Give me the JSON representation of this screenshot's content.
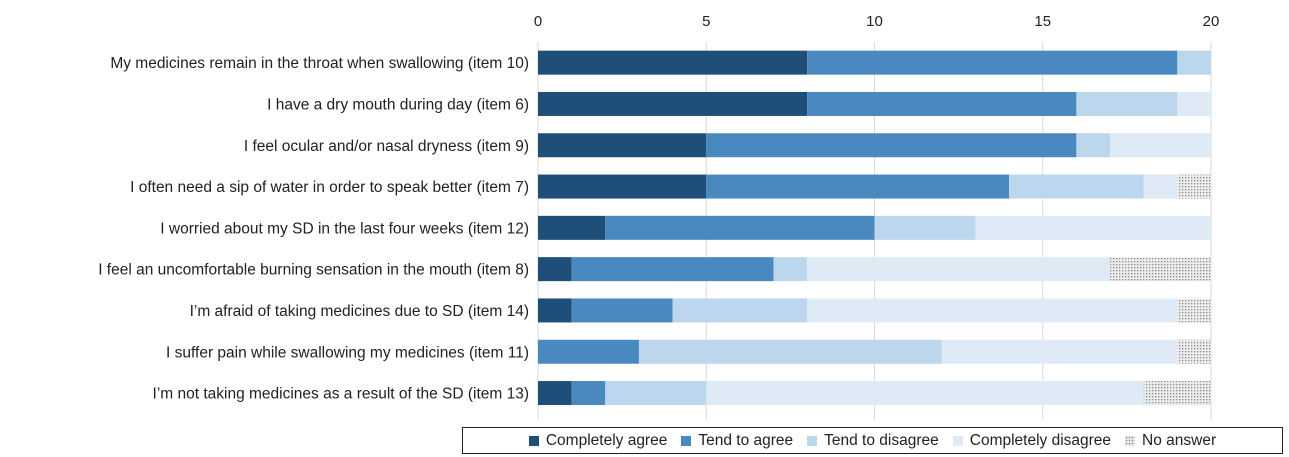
{
  "chart_data": {
    "type": "bar",
    "orientation": "horizontal",
    "stacked": true,
    "title": "",
    "xlabel": "",
    "ylabel": "",
    "xlim": [
      0,
      20
    ],
    "x_ticks": [
      0,
      5,
      10,
      15,
      20
    ],
    "x_axis_position": "top",
    "grid": true,
    "legend_position": "bottom-right",
    "categories": [
      "My medicines remain in the throat when swallowing (item 10)",
      "I have a dry mouth during day (item 6)",
      "I feel ocular and/or nasal dryness (item 9)",
      "I often need a sip of water in order to speak better (item 7)",
      "I worried about my SD in the last four weeks (item 12)",
      "I feel an uncomfortable burning sensation in the mouth (item 8)",
      "I’m afraid of taking medicines due to SD (item 14)",
      "I suffer pain while swallowing my medicines (item 11)",
      "I’m not taking medicines as a result of the SD (item 13)"
    ],
    "series": [
      {
        "name": "Completely agree",
        "color": "#1f4e79",
        "values": [
          8,
          8,
          5,
          5,
          2,
          1,
          1,
          0,
          1
        ]
      },
      {
        "name": "Tend to agree",
        "color": "#4a89c0",
        "values": [
          11,
          8,
          11,
          9,
          8,
          6,
          3,
          3,
          1
        ]
      },
      {
        "name": "Tend to disagree",
        "color": "#bcd6ee",
        "values": [
          1,
          3,
          1,
          4,
          3,
          1,
          4,
          9,
          3
        ]
      },
      {
        "name": "Completely disagree",
        "color": "#deeaf6",
        "values": [
          0,
          1,
          3,
          1,
          7,
          9,
          11,
          7,
          13
        ]
      },
      {
        "name": "No answer",
        "color": "#c8c8c8",
        "pattern": "dotted",
        "values": [
          0,
          0,
          0,
          1,
          0,
          3,
          1,
          1,
          2
        ]
      }
    ]
  }
}
